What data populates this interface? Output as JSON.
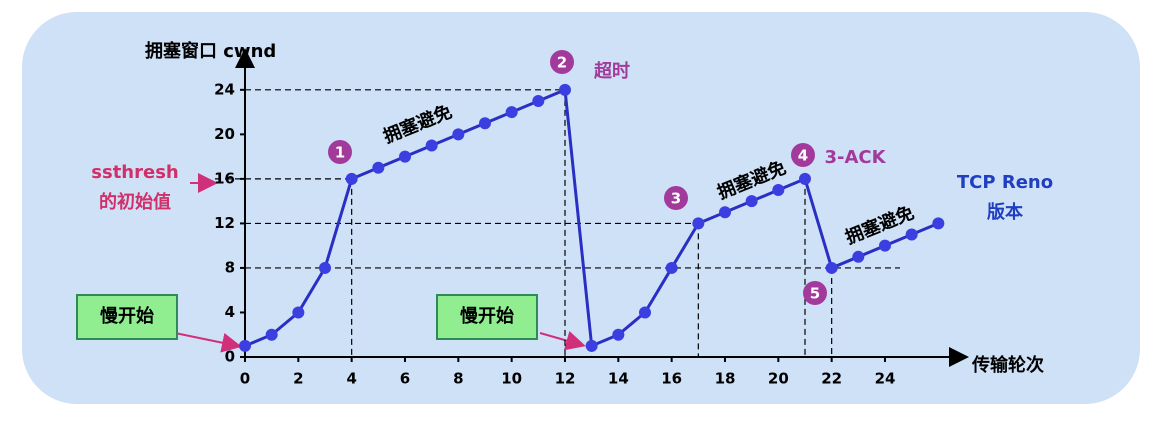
{
  "chart_data": {
    "type": "line",
    "y_label": "拥塞窗口 cwnd",
    "x_label": "传输轮次",
    "x": [
      0,
      1,
      2,
      3,
      4,
      5,
      6,
      7,
      8,
      9,
      10,
      11,
      12,
      13,
      14,
      15,
      16,
      17,
      18,
      19,
      20,
      21,
      22,
      23,
      24,
      25,
      26
    ],
    "series": [
      {
        "color": "#2a2fc4",
        "values": [
          1,
          2,
          4,
          8,
          16,
          17,
          18,
          19,
          20,
          21,
          22,
          23,
          24,
          1,
          2,
          4,
          8,
          12,
          13,
          14,
          15,
          16,
          8,
          9,
          10,
          11,
          12
        ]
      }
    ],
    "xlim": [
      0,
      27
    ],
    "ylim": [
      0,
      26.5
    ],
    "xticks": [
      0,
      2,
      4,
      6,
      8,
      10,
      12,
      14,
      16,
      18,
      20,
      22,
      24
    ],
    "yticks": [
      0,
      4,
      8,
      12,
      16,
      20,
      24
    ],
    "markers": [
      "1",
      "2",
      "3",
      "4",
      "5"
    ],
    "annotations": [
      "ssthresh",
      "的初始值",
      "慢开始",
      "慢开始",
      "拥塞避免",
      "拥塞避免",
      "拥塞避免",
      "超时",
      "3-ACK",
      "TCP Reno",
      "版本"
    ]
  }
}
